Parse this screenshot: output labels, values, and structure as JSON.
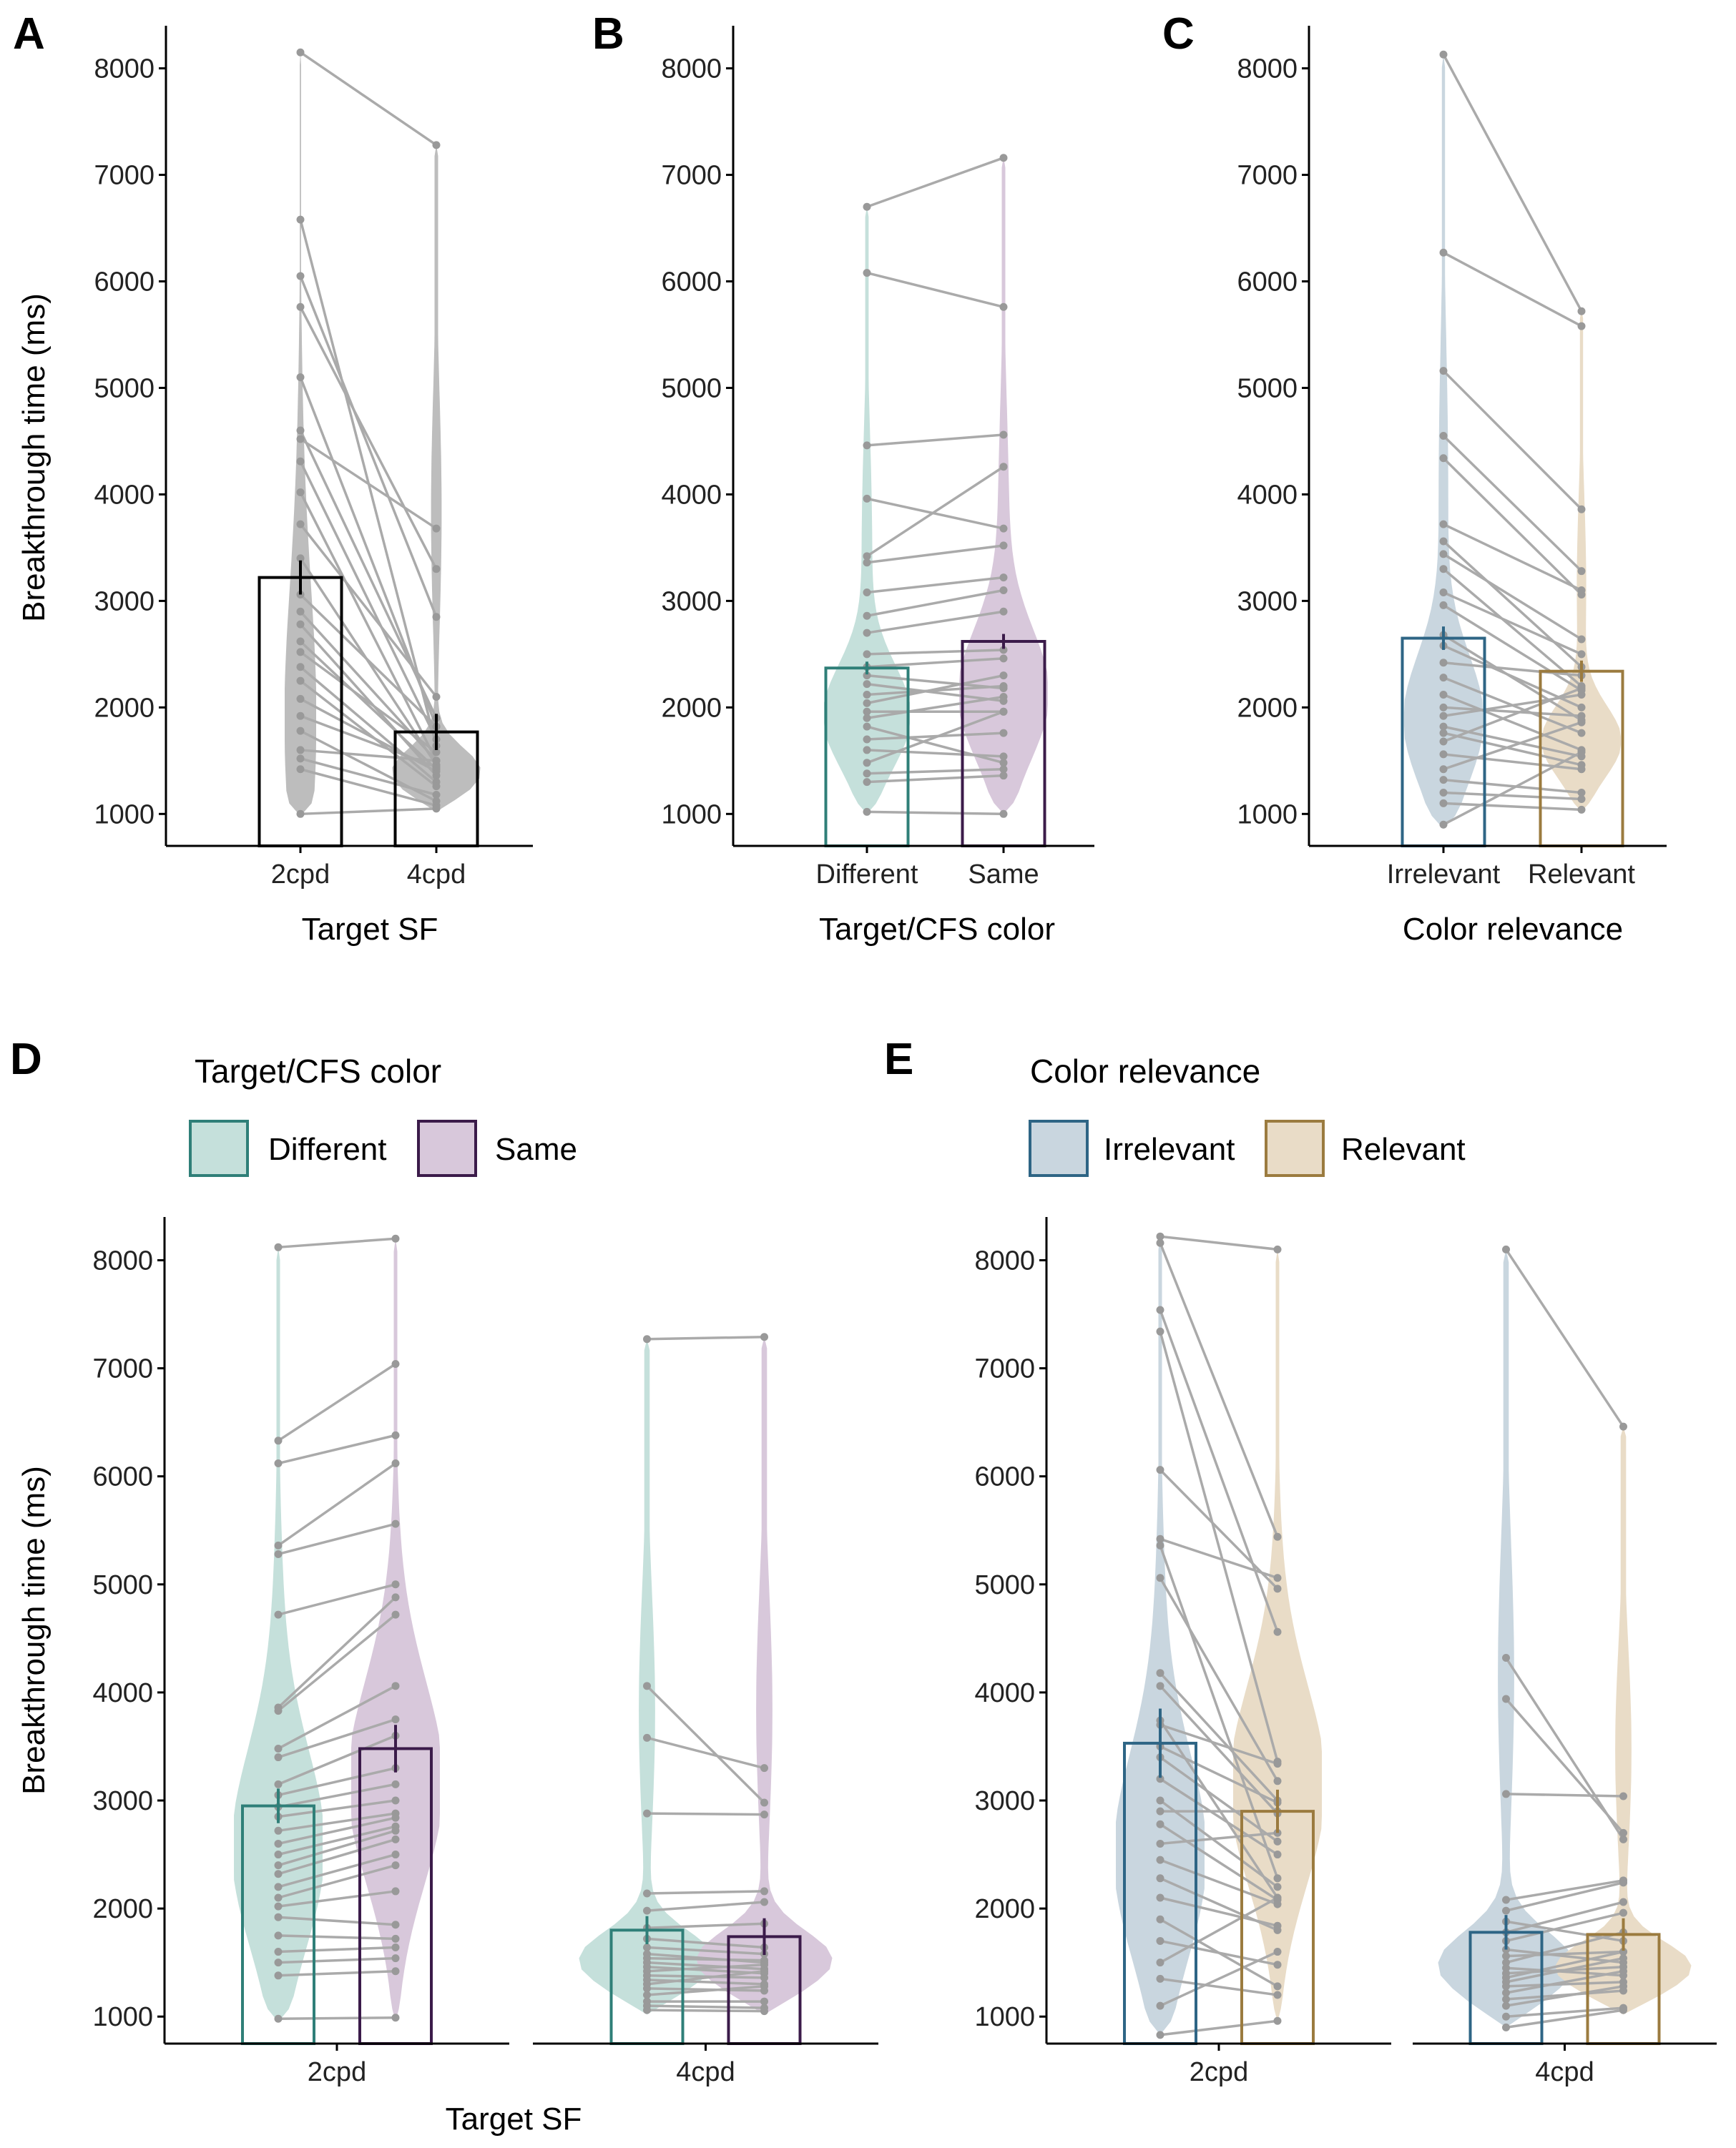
{
  "colors": {
    "dot": "#999999",
    "line": "#aaaaaa",
    "A_violin": "#bdbdbd",
    "A_bar": "#000000",
    "different_fill": "#c5e0db",
    "different_stroke": "#2f7f78",
    "same_fill": "#d8c8db",
    "same_stroke": "#3b1b4a",
    "irrelevant_fill": "#c9d6df",
    "irrelevant_stroke": "#2e6585",
    "relevant_fill": "#e9dcc7",
    "relevant_stroke": "#9b7b3f"
  },
  "chart_data": [
    {
      "panel": "A",
      "type": "bar",
      "ylabel": "Breakthrough time (ms)",
      "xlabel": "Target SF",
      "ylim": [
        700,
        8400
      ],
      "yticks": [
        "1000",
        "2000",
        "3000",
        "4000",
        "5000",
        "6000",
        "7000",
        "8000"
      ],
      "categories": [
        "2cpd",
        "4cpd"
      ],
      "values": [
        3220,
        1770
      ],
      "errors": [
        160,
        170
      ],
      "violin_range": [
        [
          980,
          8150
        ],
        [
          1020,
          7280
        ]
      ],
      "paired_points": {
        "a": [
          8150,
          6580,
          6050,
          5760,
          5100,
          4600,
          4520,
          4310,
          4020,
          3720,
          3400,
          3060,
          2900,
          2780,
          2620,
          2520,
          2380,
          2250,
          2080,
          1920,
          1780,
          1600,
          1520,
          1420,
          1000
        ],
        "b": [
          7280,
          1640,
          2850,
          3300,
          1820,
          1900,
          3680,
          1700,
          1500,
          2100,
          1460,
          1820,
          1500,
          1360,
          1420,
          1580,
          1300,
          1260,
          1400,
          1440,
          1120,
          1500,
          1180,
          1080,
          1050
        ]
      }
    },
    {
      "panel": "B",
      "type": "bar",
      "xlabel": "Target/CFS color",
      "ylim": [
        700,
        8400
      ],
      "yticks": [
        "1000",
        "2000",
        "3000",
        "4000",
        "5000",
        "6000",
        "7000",
        "8000"
      ],
      "categories": [
        "Different",
        "Same"
      ],
      "values": [
        2370,
        2620
      ],
      "errors": [
        60,
        70
      ],
      "violin_range": [
        [
          1000,
          6700
        ],
        [
          1000,
          7170
        ]
      ],
      "paired_points": {
        "a": [
          6700,
          6080,
          4460,
          3960,
          3420,
          3360,
          3080,
          2860,
          2700,
          2500,
          2380,
          2300,
          2220,
          2120,
          2040,
          1960,
          1900,
          1820,
          1700,
          1600,
          1480,
          1380,
          1300,
          1020
        ],
        "b": [
          7160,
          5760,
          4560,
          3680,
          4260,
          3520,
          3220,
          3100,
          2900,
          2540,
          2460,
          2180,
          2060,
          2200,
          2300,
          1960,
          2100,
          1480,
          1760,
          1540,
          1960,
          1420,
          1360,
          1000
        ]
      }
    },
    {
      "panel": "C",
      "type": "bar",
      "xlabel": "Color relevance",
      "ylim": [
        700,
        8400
      ],
      "yticks": [
        "1000",
        "2000",
        "3000",
        "4000",
        "5000",
        "6000",
        "7000",
        "8000"
      ],
      "categories": [
        "Irrelevant",
        "Relevant"
      ],
      "values": [
        2650,
        2340
      ],
      "errors": [
        110,
        100
      ],
      "violin_range": [
        [
          860,
          8130
        ],
        [
          1020,
          5730
        ]
      ],
      "paired_points": {
        "a": [
          8130,
          6270,
          5160,
          4550,
          4340,
          3720,
          3560,
          3440,
          3300,
          3080,
          2960,
          2680,
          2580,
          2420,
          2280,
          2120,
          2000,
          1920,
          1820,
          1760,
          1680,
          1560,
          1420,
          1320,
          1200,
          1100,
          900
        ],
        "b": [
          5720,
          5580,
          3860,
          3280,
          3060,
          3100,
          2380,
          2640,
          2200,
          2500,
          2160,
          1880,
          2000,
          2300,
          1760,
          1600,
          1920,
          2120,
          1540,
          1460,
          2180,
          1420,
          1860,
          1200,
          1140,
          1040,
          1580
        ]
      }
    },
    {
      "panel": "D",
      "type": "grouped-bar",
      "ylabel": "Breakthrough time (ms)",
      "xlabel": "Target SF",
      "ylim": [
        750,
        8400
      ],
      "yticks": [
        "1000",
        "2000",
        "3000",
        "4000",
        "5000",
        "6000",
        "7000",
        "8000"
      ],
      "legend": {
        "title": "Target/CFS color",
        "entries": [
          "Different",
          "Same"
        ],
        "placement": "top"
      },
      "groups": [
        {
          "label": "2cpd",
          "series": [
            {
              "name": "Different",
              "value": 2950,
              "error": 160,
              "violin_range": [
                950,
                8120
              ]
            },
            {
              "name": "Same",
              "value": 3480,
              "error": 220,
              "violin_range": [
                950,
                8200
              ]
            }
          ],
          "paired_points": {
            "a": [
              8120,
              6330,
              6120,
              5360,
              5280,
              4720,
              3860,
              3830,
              3480,
              3400,
              3150,
              3050,
              2940,
              2850,
              2720,
              2600,
              2500,
              2400,
              2320,
              2200,
              2100,
              2020,
              1920,
              1750,
              1600,
              1500,
              1380,
              980
            ],
            "b": [
              8200,
              7040,
              6380,
              6120,
              5560,
              5000,
              4880,
              4720,
              4060,
              3750,
              3600,
              3300,
              3150,
              3000,
              2880,
              2840,
              2760,
              2720,
              2640,
              2500,
              2400,
              2160,
              1850,
              1720,
              1640,
              1540,
              1420,
              990
            ]
          }
        },
        {
          "label": "4cpd",
          "series": [
            {
              "name": "Different",
              "value": 1800,
              "error": 130,
              "violin_range": [
                1020,
                7270
              ]
            },
            {
              "name": "Same",
              "value": 1740,
              "error": 170,
              "violin_range": [
                1020,
                7290
              ]
            }
          ],
          "paired_points": {
            "a": [
              7270,
              4060,
              3580,
              2880,
              2140,
              1980,
              1820,
              1720,
              1640,
              1580,
              1540,
              1500,
              1460,
              1420,
              1380,
              1340,
              1300,
              1260,
              1200,
              1140,
              1100,
              1060
            ],
            "b": [
              7290,
              2980,
              3300,
              2870,
              2160,
              2060,
              1860,
              1640,
              1580,
              1500,
              1520,
              1440,
              1400,
              1480,
              1360,
              1300,
              1420,
              1240,
              1280,
              1140,
              1080,
              1050
            ]
          }
        }
      ]
    },
    {
      "panel": "E",
      "type": "grouped-bar",
      "xlabel": "",
      "ylim": [
        750,
        8400
      ],
      "yticks": [
        "1000",
        "2000",
        "3000",
        "4000",
        "5000",
        "6000",
        "7000",
        "8000"
      ],
      "legend": {
        "title": "Color relevance",
        "entries": [
          "Irrelevant",
          "Relevant"
        ],
        "placement": "top"
      },
      "groups": [
        {
          "label": "2cpd",
          "series": [
            {
              "name": "Irrelevant",
              "value": 3530,
              "error": 320,
              "violin_range": [
                830,
                8220
              ]
            },
            {
              "name": "Relevant",
              "value": 2900,
              "error": 200,
              "violin_range": [
                950,
                8100
              ]
            }
          ],
          "paired_points": {
            "a": [
              8220,
              8160,
              7540,
              7340,
              6060,
              5420,
              5360,
              5060,
              4180,
              4060,
              3740,
              3700,
              3500,
              3400,
              3200,
              3000,
              2900,
              2780,
              2600,
              2450,
              2280,
              2100,
              1900,
              1700,
              1500,
              1350,
              1100,
              830
            ],
            "b": [
              8100,
              5440,
              4560,
              3360,
              4960,
              5060,
              2280,
              3180,
              3000,
              2880,
              2100,
              3340,
              2980,
              2620,
              2500,
              2200,
              2900,
              2080,
              2700,
              2040,
              1800,
              1840,
              1280,
              1480,
              2100,
              1200,
              1600,
              960
            ]
          }
        },
        {
          "label": "4cpd",
          "series": [
            {
              "name": "Irrelevant",
              "value": 1780,
              "error": 160,
              "violin_range": [
                900,
                8100
              ]
            },
            {
              "name": "Relevant",
              "value": 1760,
              "error": 150,
              "violin_range": [
                1020,
                6460
              ]
            }
          ],
          "paired_points": {
            "a": [
              8100,
              4320,
              3940,
              3060,
              2080,
              1980,
              1880,
              1780,
              1700,
              1620,
              1560,
              1500,
              1450,
              1400,
              1360,
              1320,
              1280,
              1220,
              1160,
              1100,
              1000,
              900
            ],
            "b": [
              6460,
              2640,
              2700,
              3040,
              2260,
              2240,
              1700,
              2060,
              1960,
              1500,
              1600,
              1780,
              1380,
              1460,
              1600,
              1540,
              1320,
              1420,
              1240,
              1280,
              1080,
              1060
            ]
          }
        }
      ]
    }
  ]
}
